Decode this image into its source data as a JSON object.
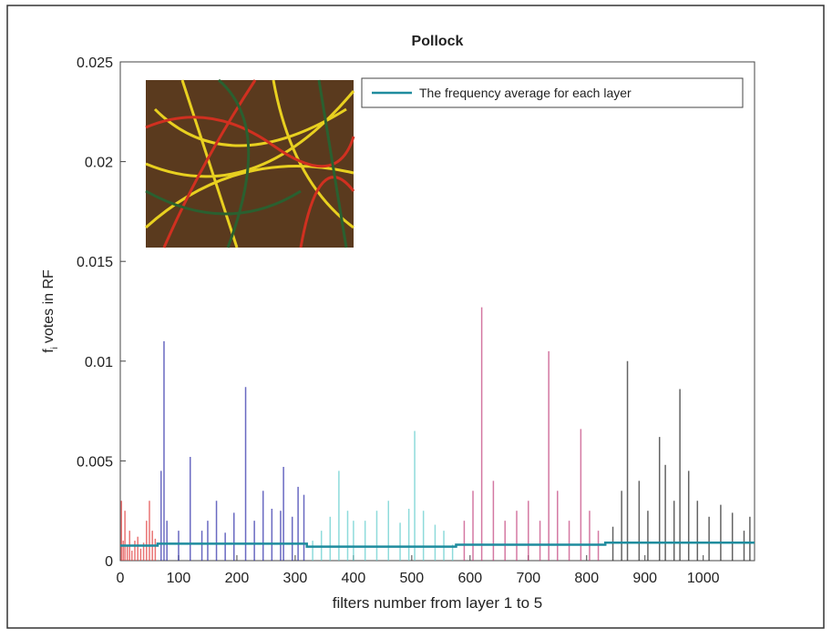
{
  "chart_data": {
    "type": "bar",
    "title": "Pollock",
    "xlabel": "filters number from layer 1 to 5",
    "ylabel_symbol": "f",
    "ylabel_subscript": "i",
    "ylabel": "votes in RF",
    "xlim": [
      0,
      1088
    ],
    "xticks": [
      0,
      100,
      200,
      300,
      400,
      500,
      600,
      700,
      800,
      900,
      1000
    ],
    "ylim": [
      0,
      0.025
    ],
    "yticks": [
      0,
      0.005,
      0.01,
      0.015,
      0.02,
      0.025
    ],
    "layers": [
      {
        "color": "#e03a3a",
        "x": [
          2,
          5,
          8,
          12,
          16,
          20,
          25,
          30,
          35,
          40,
          45,
          50,
          55,
          60
        ],
        "values": [
          0.003,
          0.001,
          0.0025,
          0.0008,
          0.0015,
          0.0005,
          0.001,
          0.0012,
          0.0006,
          0.0009,
          0.002,
          0.003,
          0.0015,
          0.0011
        ]
      },
      {
        "color": "#2a2aa8",
        "x": [
          70,
          75,
          80,
          100,
          120,
          140,
          150,
          165,
          180,
          195,
          215,
          230,
          245,
          260,
          275,
          280,
          295,
          305,
          315
        ],
        "values": [
          0.0045,
          0.011,
          0.002,
          0.0015,
          0.0052,
          0.0015,
          0.002,
          0.003,
          0.0014,
          0.0024,
          0.0087,
          0.002,
          0.0035,
          0.0026,
          0.0025,
          0.0047,
          0.0022,
          0.0037,
          0.0033
        ]
      },
      {
        "color": "#5fcccc",
        "x": [
          330,
          345,
          360,
          375,
          390,
          400,
          420,
          440,
          460,
          480,
          495,
          505,
          520,
          540,
          555,
          570
        ],
        "values": [
          0.001,
          0.0015,
          0.0022,
          0.0045,
          0.0025,
          0.002,
          0.002,
          0.0025,
          0.003,
          0.0019,
          0.0026,
          0.0065,
          0.0025,
          0.0018,
          0.0015,
          0.0008
        ]
      },
      {
        "color": "#c2407c",
        "x": [
          590,
          605,
          620,
          640,
          660,
          680,
          700,
          720,
          735,
          750,
          770,
          790,
          805,
          820
        ],
        "values": [
          0.002,
          0.0035,
          0.0127,
          0.004,
          0.002,
          0.0025,
          0.003,
          0.002,
          0.0105,
          0.0035,
          0.002,
          0.0066,
          0.0025,
          0.0015
        ]
      },
      {
        "color": "#222222",
        "x": [
          845,
          860,
          870,
          890,
          905,
          925,
          935,
          950,
          960,
          975,
          990,
          1010,
          1030,
          1050,
          1070,
          1080
        ],
        "values": [
          0.0017,
          0.0035,
          0.01,
          0.004,
          0.0025,
          0.0062,
          0.0048,
          0.003,
          0.0086,
          0.0045,
          0.003,
          0.0022,
          0.0028,
          0.0024,
          0.0015,
          0.0022
        ]
      }
    ],
    "series": [
      {
        "name": "The frequency average for each layer",
        "color": "#1f8c9e",
        "x": [
          0,
          64,
          64,
          320,
          320,
          576,
          576,
          832,
          832,
          1088
        ],
        "values": [
          0.00075,
          0.00075,
          0.00085,
          0.00085,
          0.0007,
          0.0007,
          0.0008,
          0.0008,
          0.0009,
          0.0009
        ]
      }
    ]
  }
}
